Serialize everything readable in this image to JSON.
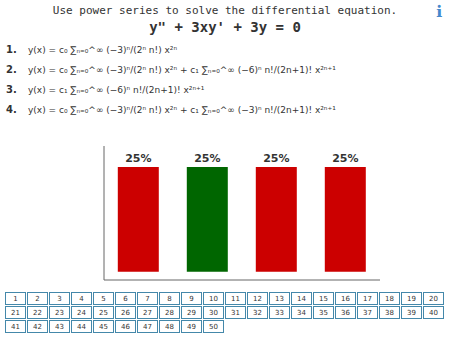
{
  "chart_data": {
    "type": "bar",
    "title": "Use power series to solve the differential equation.",
    "subtitle": "y\" + 3xy' + 3y = 0",
    "annotations": [
      "ℹ",
      "1.",
      "2.",
      "3.",
      "4.",
      "y(x) = c₀ ∑ₙ₌₀^∞ (−3)ⁿ/(2ⁿ n!) x²ⁿ",
      "y(x) = c₀ ∑ₙ₌₀^∞ (−3)ⁿ/(2ⁿ n!) x²ⁿ + c₁ ∑ₙ₌₀^∞ (−6)ⁿ n!/(2n+1)! x²ⁿ⁺¹",
      "y(x) = c₁ ∑ₙ₌₀^∞ (−6)ⁿ n!/(2n+1)! x²ⁿ⁺¹",
      "y(x) = c₀ ∑ₙ₌₀^∞ (−3)ⁿ/(2ⁿ n!) x²ⁿ + c₁ ∑ₙ₌₀^∞ (−3)ⁿ n!/(2n+1)! x²ⁿ⁺¹",
      "1",
      "2",
      "3",
      "4",
      "5",
      "6",
      "7",
      "8",
      "9",
      "10",
      "11",
      "12",
      "13",
      "14",
      "15",
      "16",
      "17",
      "18",
      "19",
      "20",
      "21",
      "22",
      "23",
      "24",
      "25",
      "26",
      "27",
      "28",
      "29",
      "30",
      "31",
      "32",
      "33",
      "34",
      "35",
      "36",
      "37",
      "38",
      "39",
      "40",
      "41",
      "42",
      "43",
      "44",
      "45",
      "46",
      "47",
      "48",
      "49",
      "50"
    ],
    "categories": [
      null,
      null,
      null,
      null
    ],
    "values": [
      25,
      25,
      25,
      25
    ],
    "value_labels": [
      "25%",
      "25%",
      "25%",
      "25%"
    ],
    "colors": [
      "#cc0000",
      "#006600",
      "#cc0000",
      "#cc0000"
    ],
    "ylim": [
      -2,
      30
    ],
    "data_labels": true,
    "tick_labels": false,
    "grid": false
  }
}
